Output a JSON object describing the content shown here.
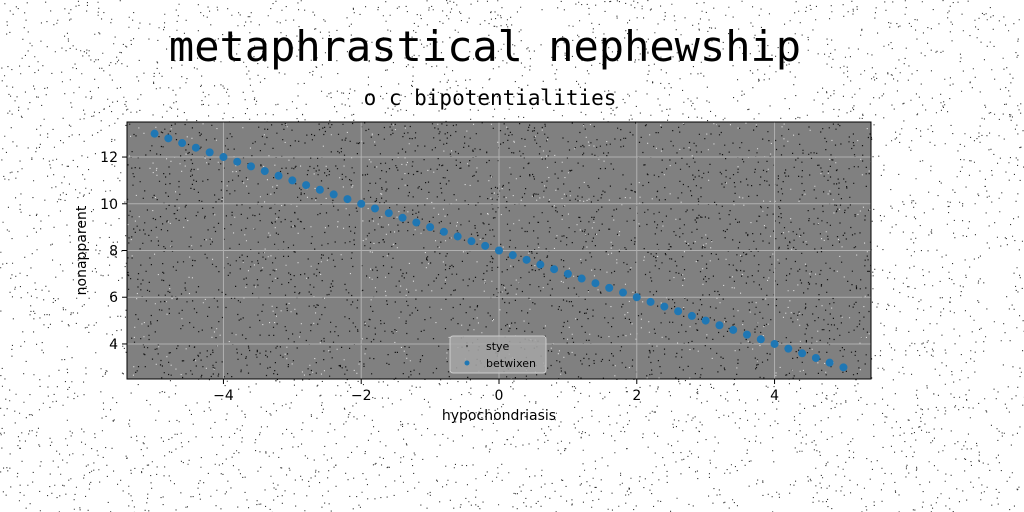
{
  "chart_data": {
    "type": "scatter",
    "title": "metaphrastical nephewship",
    "subtitle": "o c bipotentialities",
    "xlabel": "hypochondriasis",
    "ylabel": "nonapparent",
    "xlim": [
      -5.4,
      5.4
    ],
    "ylim": [
      2.5,
      13.5
    ],
    "xticks": [
      -4,
      -2,
      0,
      2,
      4
    ],
    "xtick_labels": [
      "−4",
      "−2",
      "0",
      "2",
      "4"
    ],
    "yticks": [
      4,
      6,
      8,
      10,
      12
    ],
    "ytick_labels": [
      "4",
      "6",
      "8",
      "10",
      "12"
    ],
    "grid": true,
    "legend_position": "lower-center",
    "series": [
      {
        "name": "stye",
        "style": "noise-scatter",
        "color": "#111111",
        "count": 2500
      },
      {
        "name": "betwixen",
        "style": "points",
        "color": "#1f77b4",
        "x_start": -5,
        "x_end": 5,
        "count": 51,
        "slope": -1,
        "intercept": 8
      }
    ],
    "colors": {
      "axes_bg": "#808080",
      "grid": "#b0b0b0",
      "marker": "#1f77b4"
    }
  }
}
